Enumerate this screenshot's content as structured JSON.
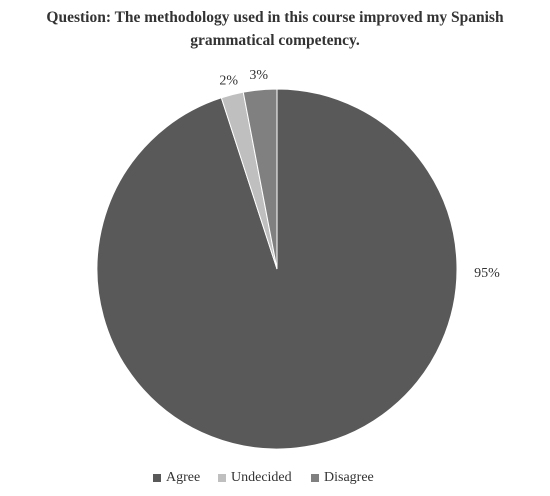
{
  "chart_data": {
    "type": "pie",
    "title": "Question: The methodology used in this course improved my Spanish grammatical competency.",
    "categories": [
      "Agree",
      "Undecided",
      "Disagree"
    ],
    "values": [
      95,
      2,
      3
    ],
    "value_labels": [
      "95%",
      "2%",
      "3%"
    ],
    "colors": [
      "#595959",
      "#bfbfbf",
      "#808080"
    ],
    "legend": "bottom"
  }
}
